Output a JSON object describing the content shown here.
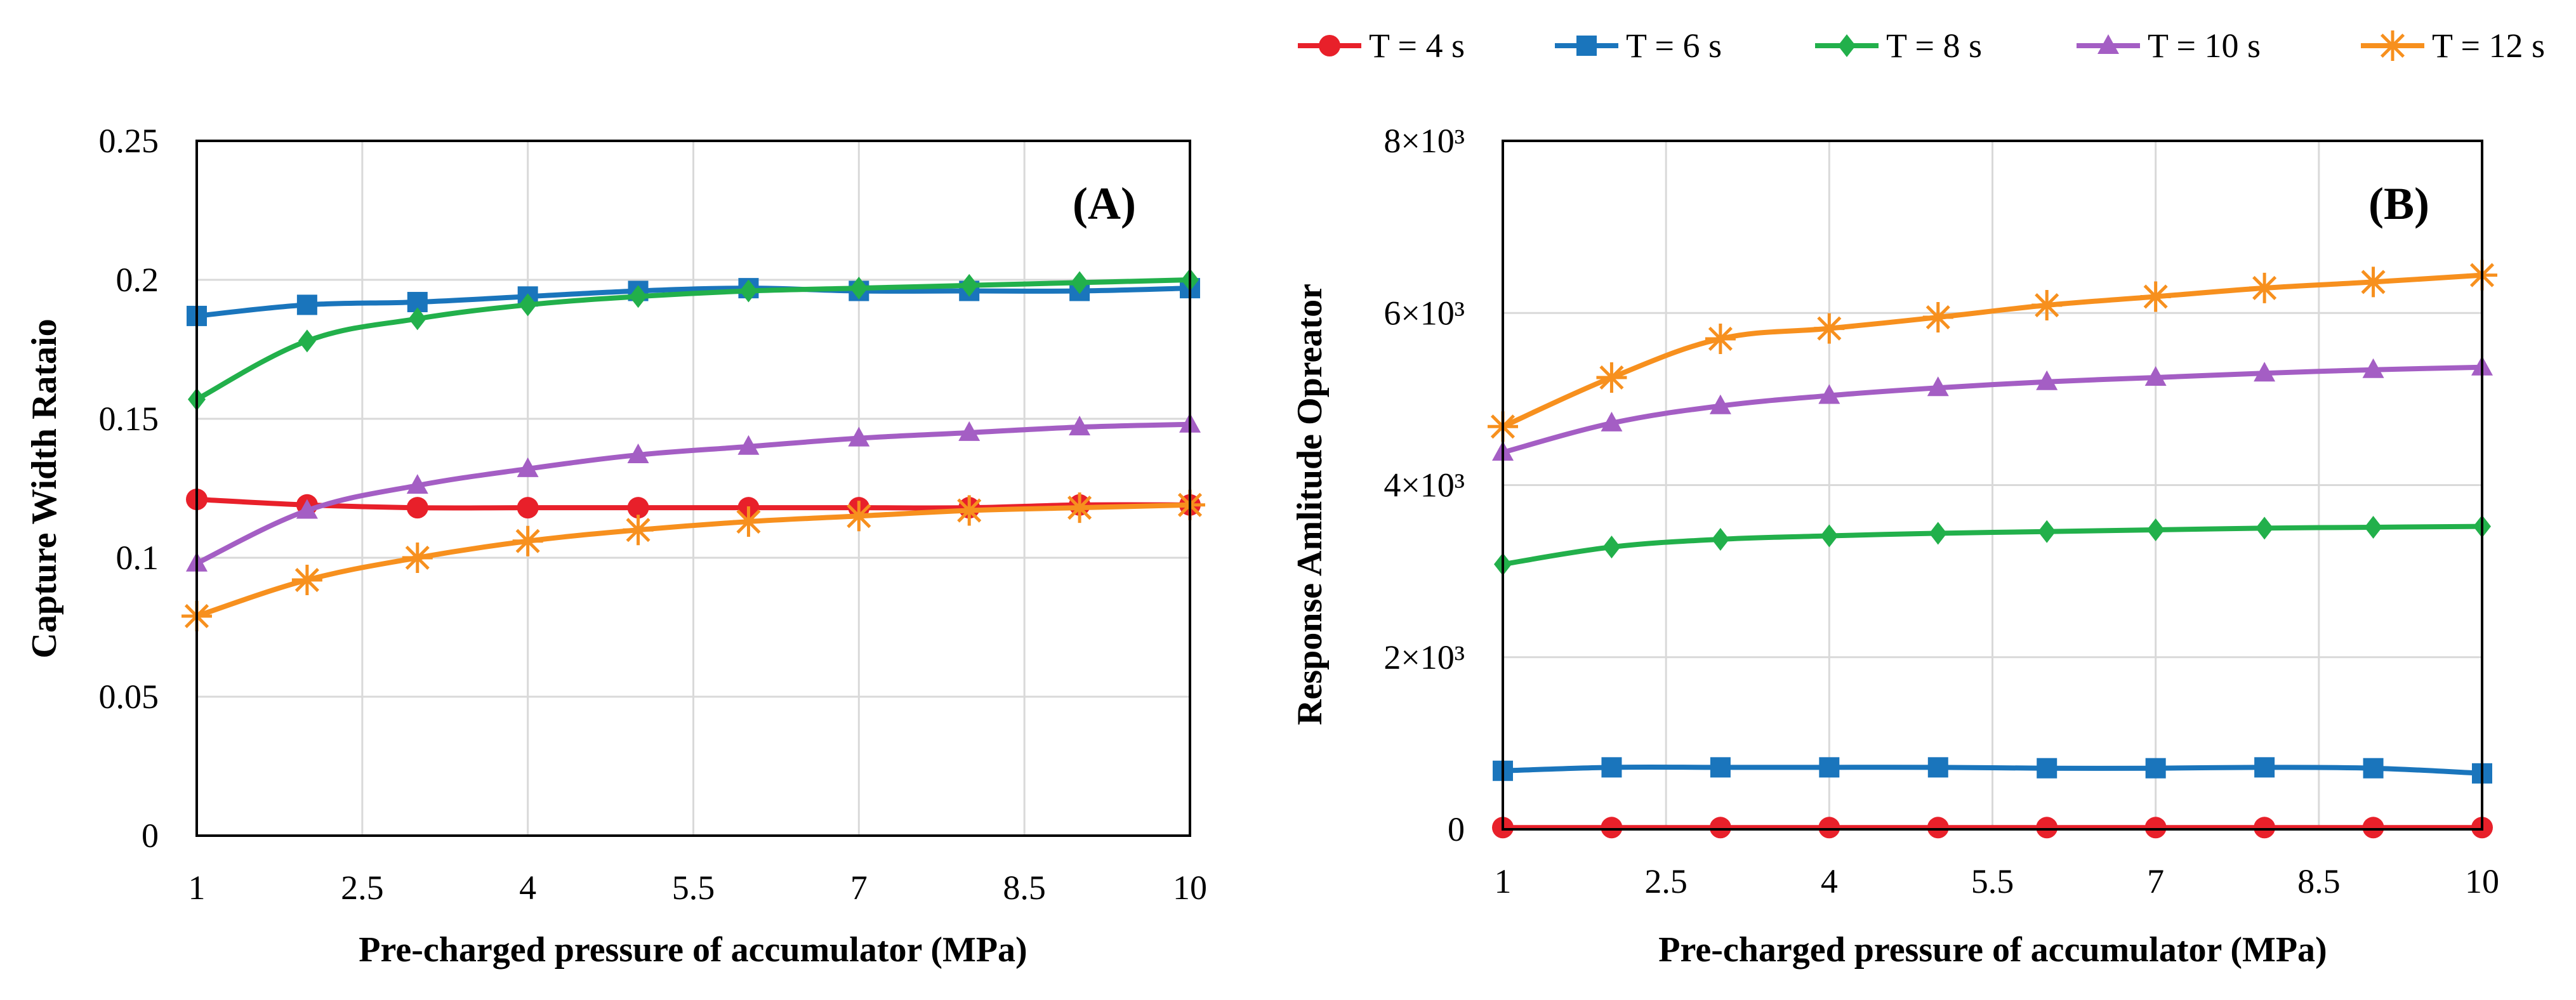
{
  "legend": [
    {
      "label": "T = 4 s",
      "color": "#e8202a",
      "marker": "circle"
    },
    {
      "label": "T = 6 s",
      "color": "#1a75bc",
      "marker": "square"
    },
    {
      "label": "T = 8 s",
      "color": "#22b04b",
      "marker": "diamond"
    },
    {
      "label": "T = 10 s",
      "color": "#a45ec4",
      "marker": "triangle"
    },
    {
      "label": "T =  12 s",
      "color": "#f7901e",
      "marker": "asterisk"
    }
  ],
  "chart_data": [
    {
      "type": "line",
      "panel": "(A)",
      "xlabel": "Pre-charged pressure of accumulator  (MPa)",
      "ylabel": "Capture Width Rataio",
      "xlim": [
        1,
        10
      ],
      "ylim": [
        0,
        0.25
      ],
      "grid": true,
      "x": [
        1,
        2,
        3,
        4,
        5,
        6,
        7,
        8,
        9,
        10
      ],
      "xticks": [
        1,
        2.5,
        4,
        5.5,
        7,
        8.5,
        10
      ],
      "xtick_labels": [
        "1",
        "2.5",
        "4",
        "5.5",
        "7",
        "8.5",
        "10"
      ],
      "yticks": [
        0,
        0.05,
        0.1,
        0.15,
        0.2,
        0.25
      ],
      "ytick_labels": [
        "0",
        "0.05",
        "0.1",
        "0.15",
        "0.2",
        "0.25"
      ],
      "series": [
        {
          "name": "T = 4 s",
          "values": [
            0.121,
            0.119,
            0.118,
            0.118,
            0.118,
            0.118,
            0.118,
            0.118,
            0.119,
            0.119
          ]
        },
        {
          "name": "T = 6 s",
          "values": [
            0.187,
            0.191,
            0.192,
            0.194,
            0.196,
            0.197,
            0.196,
            0.196,
            0.196,
            0.197
          ]
        },
        {
          "name": "T = 8 s",
          "values": [
            0.157,
            0.178,
            0.186,
            0.191,
            0.194,
            0.196,
            0.197,
            0.198,
            0.199,
            0.2
          ]
        },
        {
          "name": "T = 10 s",
          "values": [
            0.098,
            0.117,
            0.126,
            0.132,
            0.137,
            0.14,
            0.143,
            0.145,
            0.147,
            0.148
          ]
        },
        {
          "name": "T =  12 s",
          "values": [
            0.079,
            0.092,
            0.1,
            0.106,
            0.11,
            0.113,
            0.115,
            0.117,
            0.118,
            0.119
          ]
        }
      ]
    },
    {
      "type": "line",
      "panel": "(B)",
      "xlabel": "Pre-charged pressure of accumulator  (MPa)",
      "ylabel": "Response Amlitude Opreator",
      "xlim": [
        1,
        10
      ],
      "ylim": [
        0,
        8000
      ],
      "grid": true,
      "x": [
        1,
        2,
        3,
        4,
        5,
        6,
        7,
        8,
        9,
        10
      ],
      "xticks": [
        1,
        2.5,
        4,
        5.5,
        7,
        8.5,
        10
      ],
      "xtick_labels": [
        "1",
        "2.5",
        "4",
        "5.5",
        "7",
        "8.5",
        "10"
      ],
      "yticks": [
        0,
        2000,
        4000,
        6000,
        8000
      ],
      "ytick_labels": [
        "0",
        "2×10³",
        "4×10³",
        "6×10³",
        "8×10³"
      ],
      "series": [
        {
          "name": "T = 4 s",
          "values": [
            20,
            20,
            20,
            20,
            20,
            20,
            20,
            20,
            20,
            20
          ]
        },
        {
          "name": "T = 6 s",
          "values": [
            680,
            720,
            720,
            720,
            720,
            710,
            710,
            720,
            710,
            650
          ]
        },
        {
          "name": "T = 8 s",
          "values": [
            3080,
            3280,
            3370,
            3410,
            3440,
            3460,
            3480,
            3500,
            3510,
            3520
          ]
        },
        {
          "name": "T = 10 s",
          "values": [
            4380,
            4720,
            4920,
            5040,
            5130,
            5200,
            5250,
            5300,
            5340,
            5370
          ]
        },
        {
          "name": "T =  12 s",
          "values": [
            4680,
            5250,
            5700,
            5820,
            5950,
            6090,
            6190,
            6290,
            6360,
            6440
          ]
        }
      ]
    }
  ]
}
